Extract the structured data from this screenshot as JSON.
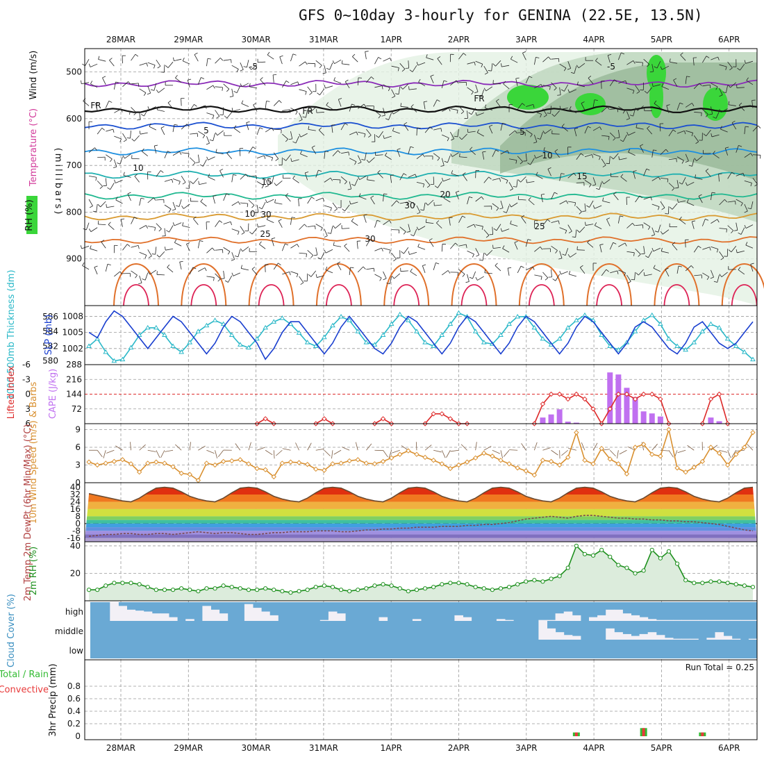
{
  "title": "GFS 0~10day 3-hourly for GENINA (22.5E, 13.5N)",
  "dates": [
    "28MAR",
    "29MAR",
    "30MAR",
    "31MAR",
    "1APR",
    "2APR",
    "3APR",
    "4APR",
    "5APR",
    "6APR"
  ],
  "run_total": "Run Total = 0.25",
  "colors": {
    "rh_light": "#e3f1e3",
    "rh_mid": "#bdd6bd",
    "rh_dark": "#97b897",
    "rh_bright": "#3ad63a",
    "slp": "#1a3fcf",
    "thickness": "#2ab8c8",
    "cape": "#c070f0",
    "lifted": "#dd2a2a",
    "wind": "#d99030",
    "rh2m": "#1c8f1c",
    "cloud": "#6aa9d4",
    "precip_total": "#33bb33",
    "precip_conv": "#e83a3a"
  },
  "chart_data": [
    {
      "type": "area",
      "panel": "upper-air cross-section",
      "ylabel_parts": [
        "RH (%)",
        "Temperature (°C)",
        "Wind (m/s)"
      ],
      "ylabel_units": "(millibars)",
      "y_ticks": [
        500,
        600,
        700,
        800,
        900
      ],
      "ylim": [
        1000,
        450
      ],
      "contour_labels": [
        "-5",
        "-5",
        "FR",
        "FR",
        "FR",
        "5",
        "5",
        "10",
        "10",
        "15",
        "15",
        "20",
        "25",
        "25",
        "30",
        "30",
        "30",
        "10"
      ],
      "temperature_levels": [
        {
          "label": "-5",
          "level": 525
        },
        {
          "label": "FR",
          "level": 580
        },
        {
          "label": "5",
          "level": 615
        },
        {
          "label": "10",
          "level": 670
        },
        {
          "label": "15",
          "level": 720
        },
        {
          "label": "20",
          "level": 765
        },
        {
          "label": "25",
          "level": 810
        },
        {
          "label": "30",
          "level": 860
        }
      ]
    },
    {
      "type": "line",
      "panel": "SLP and thickness",
      "ylabel_left": "1000-500mb Thickness (dm)",
      "ylabel_right": "SLP (mb)",
      "y_ticks_thickness": [
        "586",
        "584",
        "582",
        "580"
      ],
      "y_ticks_slp": [
        "1008",
        "1005",
        "1002"
      ],
      "x": [
        0,
        1,
        2,
        3,
        4,
        5,
        6,
        7,
        8,
        9,
        10,
        11,
        12,
        13,
        14,
        15,
        16,
        17,
        18,
        19,
        20,
        21,
        22,
        23,
        24,
        25,
        26,
        27,
        28,
        29,
        30,
        31,
        32,
        33,
        34,
        35,
        36,
        37,
        38,
        39,
        40,
        41,
        42,
        43,
        44,
        45,
        46,
        47,
        48,
        49,
        50,
        51,
        52,
        53,
        54,
        55,
        56,
        57,
        58,
        59,
        60,
        61,
        62,
        63,
        64,
        65,
        66,
        67,
        68,
        69,
        70,
        71,
        72,
        73,
        74,
        75,
        76,
        77,
        78,
        79
      ],
      "series": [
        {
          "name": "SLP",
          "values": [
            1005,
            1004,
            1007,
            1009,
            1008,
            1006,
            1004,
            1002,
            1004,
            1006,
            1008,
            1007,
            1005,
            1003,
            1001,
            1003,
            1006,
            1008,
            1007,
            1005,
            1003,
            1000,
            1002,
            1005,
            1007,
            1007,
            1005,
            1003,
            1001,
            1003,
            1006,
            1008,
            1006,
            1004,
            1002,
            1001,
            1003,
            1006,
            1008,
            1007,
            1005,
            1003,
            1001,
            1003,
            1006,
            1008,
            1007,
            1005,
            1003,
            1001,
            1003,
            1006,
            1008,
            1007,
            1005,
            1003,
            1001,
            1003,
            1006,
            1008,
            1007,
            1005,
            1003,
            1001,
            1003,
            1006,
            1007,
            1006,
            1004,
            1002,
            1001,
            1003,
            1006,
            1007,
            1005,
            1003,
            1002,
            1003,
            1005,
            1007
          ]
        },
        {
          "name": "Thickness",
          "values": [
            582.0,
            583.0,
            581.2,
            580.0,
            580.2,
            581.8,
            583.5,
            584.5,
            584.5,
            583.5,
            582.0,
            581.2,
            582.5,
            584.0,
            584.8,
            585.5,
            585.0,
            583.5,
            582.2,
            581.8,
            583.0,
            584.5,
            585.3,
            585.8,
            585.0,
            583.8,
            582.5,
            582.0,
            583.2,
            584.8,
            586.0,
            585.5,
            584.0,
            582.5,
            582.2,
            583.5,
            585.0,
            586.3,
            585.5,
            584.0,
            582.5,
            582.0,
            583.5,
            585.0,
            586.5,
            586.0,
            584.0,
            582.5,
            582.3,
            583.5,
            585.0,
            586.0,
            586.0,
            584.5,
            583.0,
            582.2,
            583.0,
            584.5,
            585.5,
            586.2,
            585.5,
            583.5,
            582.0,
            581.5,
            582.5,
            584.0,
            585.5,
            586.2,
            585.0,
            583.0,
            582.0,
            581.5,
            582.5,
            584.0,
            585.0,
            584.5,
            583.0,
            582.0,
            581.2,
            580.2
          ]
        }
      ]
    },
    {
      "type": "bar",
      "panel": "CAPE and Lifted Index",
      "ylabel_left": "Lifted Index",
      "ylabel_right": "CAPE (J/kg)",
      "y_ticks_li": [
        "-6",
        "-3",
        "0",
        "3",
        "6"
      ],
      "y_ticks_cape": [
        "288",
        "216",
        "144",
        "72"
      ],
      "cape_x": [
        54,
        55,
        56,
        57,
        58,
        62,
        63,
        64,
        65,
        66,
        67,
        68,
        69,
        70,
        71,
        72,
        74,
        75,
        76
      ],
      "cape_values": [
        30,
        45,
        70,
        10,
        5,
        250,
        240,
        175,
        130,
        60,
        50,
        35,
        2,
        2,
        2,
        2,
        30,
        12,
        2
      ],
      "lifted_x": [
        20,
        21,
        22,
        27,
        28,
        29,
        34,
        35,
        36,
        40,
        41,
        42,
        43,
        44,
        45,
        53,
        54,
        55,
        56,
        57,
        58,
        59,
        60,
        61,
        62,
        63,
        64,
        65,
        66,
        67,
        68,
        69,
        73,
        74,
        75,
        76
      ],
      "lifted_values": [
        6,
        5,
        6,
        6,
        5,
        6,
        6,
        5,
        6,
        6,
        4,
        4,
        5,
        6,
        6,
        6,
        2,
        0,
        0,
        1,
        0,
        1,
        3,
        6,
        3,
        0,
        0,
        1,
        0,
        0,
        1,
        6,
        6,
        1,
        0,
        6
      ]
    },
    {
      "type": "line",
      "panel": "10m wind",
      "ylabel": "10m Wind Speed (m/s) & Barbs",
      "y_ticks": [
        "9",
        "6",
        "3",
        "0"
      ],
      "x": [
        0,
        1,
        2,
        3,
        4,
        5,
        6,
        7,
        8,
        9,
        10,
        11,
        12,
        13,
        14,
        15,
        16,
        17,
        18,
        19,
        20,
        21,
        22,
        23,
        24,
        25,
        26,
        27,
        28,
        29,
        30,
        31,
        32,
        33,
        34,
        35,
        36,
        37,
        38,
        39,
        40,
        41,
        42,
        43,
        44,
        45,
        46,
        47,
        48,
        49,
        50,
        51,
        52,
        53,
        54,
        55,
        56,
        57,
        58,
        59,
        60,
        61,
        62,
        63,
        64,
        65,
        66,
        67,
        68,
        69,
        70,
        71,
        72,
        73,
        74,
        75,
        76,
        77,
        78,
        79
      ],
      "values": [
        3.5,
        3.0,
        3.3,
        3.6,
        3.9,
        3.2,
        1.8,
        3.3,
        3.5,
        3.3,
        2.7,
        1.6,
        1.4,
        0.4,
        3.3,
        3.0,
        3.6,
        3.7,
        3.9,
        3.2,
        2.4,
        2.2,
        1.0,
        3.3,
        3.5,
        3.4,
        3.1,
        2.3,
        2.1,
        3.2,
        3.3,
        3.7,
        3.9,
        3.3,
        3.2,
        3.6,
        4.2,
        4.8,
        5.4,
        4.8,
        4.3,
        3.8,
        3.2,
        2.4,
        3.0,
        3.5,
        4.2,
        5.0,
        4.5,
        3.8,
        3.2,
        2.5,
        2.0,
        1.3,
        3.8,
        3.6,
        3.0,
        4.3,
        8.5,
        3.8,
        3.2,
        5.8,
        4.0,
        3.2,
        1.5,
        6.0,
        6.5,
        4.8,
        4.5,
        9.0,
        2.5,
        1.8,
        2.6,
        3.6,
        6.0,
        5.0,
        3.0,
        4.8,
        6.0,
        8.5
      ]
    },
    {
      "type": "area",
      "panel": "2m temperature",
      "ylabel": "2m Temp 2m DewPt (6hr Min/Max) (°C)",
      "y_ticks": [
        "40",
        "32",
        "24",
        "16",
        "8",
        "0",
        "-8",
        "-16"
      ],
      "x": [
        0,
        1,
        2,
        3,
        4,
        5,
        6,
        7,
        8,
        9,
        10,
        11,
        12,
        13,
        14,
        15,
        16,
        17,
        18,
        19,
        20,
        21,
        22,
        23,
        24,
        25,
        26,
        27,
        28,
        29,
        30,
        31,
        32,
        33,
        34,
        35,
        36,
        37,
        38,
        39,
        40,
        41,
        42,
        43,
        44,
        45,
        46,
        47,
        48,
        49,
        50,
        51,
        52,
        53,
        54,
        55,
        56,
        57,
        58,
        59,
        60,
        61,
        62,
        63,
        64,
        65,
        66,
        67,
        68,
        69,
        70,
        71,
        72,
        73,
        74,
        75,
        76,
        77,
        78,
        79
      ],
      "series": [
        {
          "name": "2m Temp",
          "values": [
            33,
            31,
            29,
            27,
            25,
            24,
            28,
            34,
            39,
            40,
            39,
            35,
            30,
            27,
            25,
            24,
            28,
            34,
            39,
            40,
            39,
            35,
            30,
            27,
            25,
            24,
            28,
            34,
            39,
            40,
            39,
            35,
            30,
            27,
            25,
            24,
            28,
            34,
            39,
            40,
            39,
            35,
            30,
            27,
            25,
            24,
            28,
            34,
            39,
            40,
            39,
            35,
            30,
            27,
            25,
            24,
            28,
            34,
            39,
            40,
            39,
            35,
            30,
            27,
            25,
            24,
            28,
            34,
            39,
            40,
            39,
            35,
            30,
            27,
            25,
            24,
            28,
            34,
            39,
            40
          ]
        },
        {
          "name": "2m DewPt",
          "values": [
            -14,
            -13,
            -12,
            -12,
            -11,
            -11,
            -12,
            -12,
            -11,
            -11,
            -12,
            -11,
            -10,
            -9,
            -10,
            -11,
            -10,
            -10,
            -11,
            -12,
            -12,
            -11,
            -10,
            -10,
            -9,
            -9,
            -9,
            -8,
            -8,
            -8,
            -9,
            -9,
            -8,
            -7,
            -7,
            -6,
            -6,
            -5,
            -5,
            -4,
            -4,
            -4,
            -3,
            -3,
            -3,
            -2,
            -2,
            -1,
            -1,
            0,
            1,
            3,
            5,
            6,
            7,
            8,
            7,
            6,
            8,
            9,
            9,
            8,
            7,
            6,
            6,
            5,
            5,
            4,
            4,
            3,
            3,
            2,
            2,
            1,
            0,
            -1,
            -3,
            -5,
            -7,
            -8
          ]
        }
      ]
    },
    {
      "type": "area",
      "panel": "2m relative humidity",
      "ylabel": "2m RH (%)",
      "y_ticks": [
        "40",
        "20"
      ],
      "x": [
        0,
        1,
        2,
        3,
        4,
        5,
        6,
        7,
        8,
        9,
        10,
        11,
        12,
        13,
        14,
        15,
        16,
        17,
        18,
        19,
        20,
        21,
        22,
        23,
        24,
        25,
        26,
        27,
        28,
        29,
        30,
        31,
        32,
        33,
        34,
        35,
        36,
        37,
        38,
        39,
        40,
        41,
        42,
        43,
        44,
        45,
        46,
        47,
        48,
        49,
        50,
        51,
        52,
        53,
        54,
        55,
        56,
        57,
        58,
        59,
        60,
        61,
        62,
        63,
        64,
        65,
        66,
        67,
        68,
        69,
        70,
        71,
        72,
        73,
        74,
        75,
        76,
        77,
        78,
        79
      ],
      "values": [
        8,
        8,
        11,
        13,
        13,
        13,
        12,
        10,
        8,
        8,
        8,
        9,
        8,
        7,
        9,
        9,
        11,
        10,
        9,
        8,
        8,
        9,
        8,
        7,
        6,
        7,
        8,
        10,
        11,
        10,
        8,
        7,
        8,
        9,
        11,
        12,
        11,
        9,
        7,
        8,
        9,
        10,
        12,
        13,
        13,
        12,
        10,
        9,
        8,
        9,
        10,
        12,
        14,
        15,
        14,
        16,
        18,
        24,
        40,
        34,
        33,
        37,
        32,
        26,
        24,
        20,
        22,
        37,
        31,
        36,
        27,
        15,
        13,
        13,
        14,
        14,
        13,
        12,
        11,
        10
      ]
    },
    {
      "type": "bar",
      "panel": "cloud cover",
      "ylabel": "Cloud Cover (%)",
      "layers": [
        "high",
        "middle",
        "low"
      ],
      "high_clear_x": [
        3,
        4,
        5,
        6,
        7,
        8,
        9,
        10,
        12,
        14,
        15,
        16,
        19,
        20,
        21,
        22,
        28,
        29,
        30,
        35,
        39,
        44,
        45,
        49,
        50,
        54,
        55,
        56,
        57,
        58,
        60,
        61,
        62,
        63,
        64,
        65,
        66,
        67,
        68,
        69,
        70,
        71,
        72,
        73,
        74,
        75,
        76,
        77,
        78,
        79
      ],
      "high_clear_values": [
        100,
        80,
        60,
        55,
        50,
        40,
        40,
        20,
        10,
        80,
        60,
        40,
        90,
        70,
        50,
        30,
        5,
        50,
        40,
        20,
        10,
        30,
        20,
        10,
        5,
        5,
        5,
        40,
        50,
        30,
        20,
        30,
        60,
        60,
        40,
        30,
        20,
        10,
        5,
        5,
        5,
        5,
        5,
        5,
        5,
        5,
        5,
        5,
        5,
        5
      ],
      "middle_clear_x": [
        54,
        55,
        56,
        57,
        58,
        62,
        63,
        64,
        65,
        66,
        67,
        68,
        69,
        70,
        71,
        72,
        74,
        75,
        76,
        77,
        79
      ],
      "middle_clear_values": [
        100,
        60,
        40,
        25,
        20,
        60,
        40,
        30,
        20,
        30,
        40,
        25,
        10,
        5,
        5,
        5,
        10,
        40,
        20,
        5,
        5
      ]
    },
    {
      "type": "bar",
      "panel": "precipitation",
      "ylabel": "3hr Precip (mm)",
      "series_names": [
        "Total / Rain",
        "Convective"
      ],
      "y_ticks": [
        "0.8",
        "0.6",
        "0.4",
        "0.2",
        "0"
      ],
      "ylim": [
        0,
        1.0
      ],
      "x": [
        58,
        66,
        73
      ],
      "values": [
        0.06,
        0.13,
        0.06
      ]
    }
  ]
}
